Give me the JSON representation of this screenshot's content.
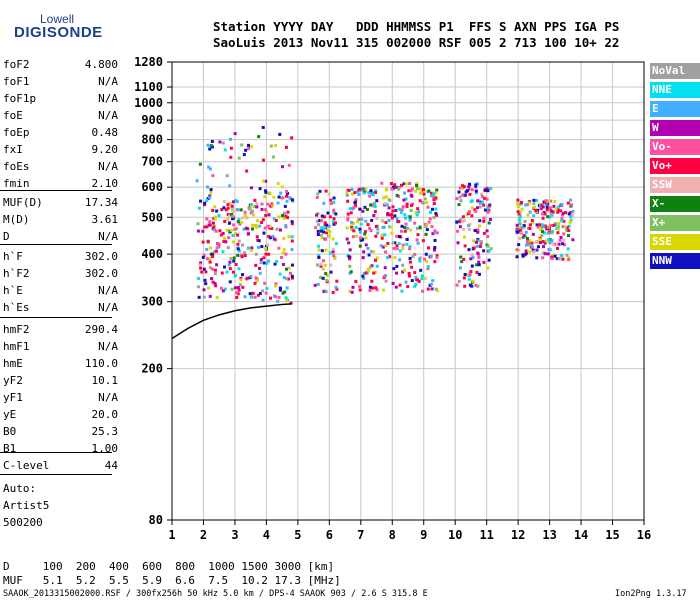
{
  "logo": {
    "line1": "Lowell",
    "line2": "DIGISONDE"
  },
  "header": {
    "row1": "Station YYYY DAY   DDD HHMMSS P1  FFS S AXN PPS IGA PS",
    "row2": "SaoLuis 2013 Nov11 315 002000 RSF 005 2 713 100 10+ 22"
  },
  "params_group1": [
    {
      "label": "foF2",
      "value": "4.800"
    },
    {
      "label": "foF1",
      "value": "N/A"
    },
    {
      "label": "foF1p",
      "value": "N/A"
    },
    {
      "label": "foE",
      "value": "N/A"
    },
    {
      "label": "foEp",
      "value": "0.48"
    },
    {
      "label": "fxI",
      "value": "9.20"
    },
    {
      "label": "foEs",
      "value": "N/A"
    },
    {
      "label": "fmin",
      "value": "2.10"
    }
  ],
  "params_group2": [
    {
      "label": "MUF(D)",
      "value": "17.34"
    },
    {
      "label": "M(D)",
      "value": "3.61"
    },
    {
      "label": "D",
      "value": "N/A"
    }
  ],
  "params_group3": [
    {
      "label": "h`F",
      "value": "302.0"
    },
    {
      "label": "h`F2",
      "value": "302.0"
    },
    {
      "label": "h`E",
      "value": "N/A"
    },
    {
      "label": "h`Es",
      "value": "N/A"
    }
  ],
  "params_group4": [
    {
      "label": "hmF2",
      "value": "290.4"
    },
    {
      "label": "hmF1",
      "value": "N/A"
    },
    {
      "label": "hmE",
      "value": "110.0"
    },
    {
      "label": "yF2",
      "value": "10.1"
    },
    {
      "label": "yF1",
      "value": "N/A"
    },
    {
      "label": "yE",
      "value": "20.0"
    },
    {
      "label": "B0",
      "value": "25.3"
    },
    {
      "label": "B1",
      "value": "1.00"
    }
  ],
  "params_group5": [
    {
      "label": "C-level",
      "value": "44"
    }
  ],
  "auto": {
    "line1": "Auto:",
    "line2": "Artist5",
    "line3": "500200"
  },
  "legend": [
    {
      "label": "NoVal",
      "color": "#a0a0a0"
    },
    {
      "label": "NNE",
      "color": "#00e0f0"
    },
    {
      "label": "E",
      "color": "#40b0ff"
    },
    {
      "label": "W",
      "color": "#b000b0"
    },
    {
      "label": "Vo-",
      "color": "#ff50a0"
    },
    {
      "label": "Vo+",
      "color": "#ff0040"
    },
    {
      "label": "SSW",
      "color": "#f0b0b0"
    },
    {
      "label": "X-",
      "color": "#108010"
    },
    {
      "label": "X+",
      "color": "#80c060"
    },
    {
      "label": "SSE",
      "color": "#d8d800"
    },
    {
      "label": "NNW",
      "color": "#1010c0"
    }
  ],
  "chart_data": {
    "type": "scatter",
    "xlim": [
      1,
      16
    ],
    "ylim": [
      80,
      1280
    ],
    "yscale": "log",
    "grid": true,
    "x_ticks": [
      "1",
      "2",
      "3",
      "4",
      "5",
      "6",
      "7",
      "8",
      "9",
      "10",
      "11",
      "12",
      "13",
      "14",
      "15",
      "16"
    ],
    "y_ticks": [
      80,
      200,
      300,
      400,
      500,
      600,
      700,
      800,
      900,
      1000,
      1100,
      1280
    ],
    "profile": {
      "x": [
        1.0,
        1.5,
        2.0,
        2.5,
        3.0,
        3.5,
        4.0,
        4.5,
        4.8
      ],
      "y": [
        240,
        255,
        268,
        277,
        284,
        289,
        292,
        295,
        296
      ]
    },
    "echo_clusters": [
      {
        "x0": 1.75,
        "x1": 2.3,
        "ymin": 310,
        "ymax": 560,
        "ytop": 800
      },
      {
        "x0": 2.3,
        "x1": 3.0,
        "ymin": 310,
        "ymax": 560,
        "ytop": 850
      },
      {
        "x0": 3.0,
        "x1": 3.7,
        "ymin": 310,
        "ymax": 560,
        "ytop": 800
      },
      {
        "x0": 3.7,
        "x1": 4.8,
        "ymin": 300,
        "ymax": 600,
        "ytop": 880
      },
      {
        "x0": 5.5,
        "x1": 6.2,
        "ymin": 320,
        "ymax": 520,
        "ytop": 600
      },
      {
        "x0": 6.5,
        "x1": 7.5,
        "ymin": 320,
        "ymax": 580,
        "ytop": 600
      },
      {
        "x0": 7.6,
        "x1": 8.8,
        "ymin": 320,
        "ymax": 590,
        "ytop": 620
      },
      {
        "x0": 8.8,
        "x1": 9.4,
        "ymin": 320,
        "ymax": 580,
        "ytop": 600
      },
      {
        "x0": 10.0,
        "x1": 11.1,
        "ymin": 330,
        "ymax": 580,
        "ytop": 620
      },
      {
        "x0": 11.9,
        "x1": 13.7,
        "ymin": 390,
        "ymax": 540,
        "ytop": 560
      }
    ]
  },
  "footer": {
    "d_row": "D     100  200  400  600  800  1000 1500 3000 [km]",
    "muf_row": "MUF   5.1  5.2  5.5  5.9  6.6  7.5  10.2 17.3 [MHz]",
    "file_line": "SAAOK_2013315002000.RSF / 300fx256h 50 kHz 5.0 km / DPS-4 SAAOK 903 / 2.6 S 315.8 E",
    "version": "Ion2Png 1.3.17"
  }
}
